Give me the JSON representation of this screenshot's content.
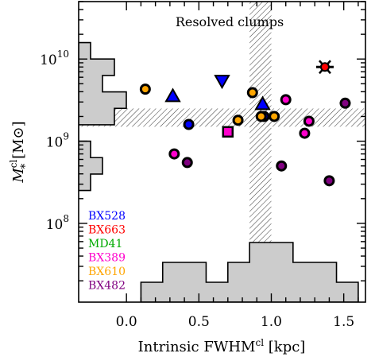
{
  "chart_data": {
    "type": "scatter",
    "title": "Resolved clumps",
    "xlabel": "Intrinsic FWHM",
    "xlabel_sup": "cl",
    "xlabel_unit": "[kpc]",
    "ylabel": "M",
    "ylabel_sup": "cl",
    "ylabel_sub": "*",
    "ylabel_unit": "[M⊙]",
    "xlim": [
      -0.33,
      1.65
    ],
    "ylim": [
      11000000.0,
      50000000000.0
    ],
    "yscale": "log",
    "grid": false,
    "x_ticks": [
      {
        "value": 0.0,
        "label": "0.0"
      },
      {
        "value": 0.5,
        "label": "0.5"
      },
      {
        "value": 1.0,
        "label": "1.0"
      },
      {
        "value": 1.5,
        "label": "1.5"
      }
    ],
    "y_ticks": [
      {
        "value": 100000000.0,
        "mantissa": "10",
        "exp": "8"
      },
      {
        "value": 1000000000.0,
        "mantissa": "10",
        "exp": "9"
      },
      {
        "value": 10000000000.0,
        "mantissa": "10",
        "exp": "10"
      }
    ],
    "legend": {
      "placement": "bottom-left",
      "entries": [
        {
          "name": "BX528",
          "color": "#0000ff"
        },
        {
          "name": "BX663",
          "color": "#ff0000"
        },
        {
          "name": "MD41",
          "color": "#00aa00"
        },
        {
          "name": "BX389",
          "color": "#ff00cc"
        },
        {
          "name": "BX610",
          "color": "#ffa500"
        },
        {
          "name": "BX482",
          "color": "#800080"
        }
      ]
    },
    "reference_bands": {
      "vertical_x": [
        0.85,
        1.0
      ],
      "horizontal_y": [
        1500000000.0,
        2500000000.0
      ]
    },
    "x_histogram": {
      "bin_edges": [
        0.1,
        0.25,
        0.55,
        0.7,
        0.85,
        1.0,
        1.15,
        1.3,
        1.45,
        1.6
      ],
      "counts": [
        1,
        2,
        1,
        2,
        3,
        3,
        2,
        2,
        1
      ]
    },
    "y_histogram": {
      "bin_edges_log": [
        8.4,
        8.6,
        8.8,
        9.0,
        9.2,
        9.4,
        9.6,
        9.8,
        10.0,
        10.2
      ],
      "counts": [
        1,
        2,
        1,
        0,
        3,
        4,
        2,
        3,
        1
      ]
    },
    "series": [
      {
        "name": "BX528",
        "color": "#0000ff",
        "marker": "triangle-up",
        "points": [
          {
            "x": 0.32,
            "y": 3500000000.0
          },
          {
            "x": 0.94,
            "y": 2800000000.0
          }
        ]
      },
      {
        "name": "BX528",
        "color": "#0000ff",
        "marker": "triangle-down",
        "points": [
          {
            "x": 0.66,
            "y": 5500000000.0
          }
        ]
      },
      {
        "name": "BX528",
        "color": "#0000ff",
        "marker": "circle",
        "points": [
          {
            "x": 0.43,
            "y": 1600000000.0
          },
          {
            "x": 0.95,
            "y": 2000000000.0
          }
        ]
      },
      {
        "name": "BX663",
        "color": "#ff0000",
        "marker": "circle-cross",
        "points": [
          {
            "x": 1.37,
            "y": 8000000000.0
          }
        ]
      },
      {
        "name": "BX389",
        "color": "#ff00cc",
        "marker": "square",
        "points": [
          {
            "x": 0.7,
            "y": 1300000000.0
          }
        ]
      },
      {
        "name": "BX389",
        "color": "#ff00cc",
        "marker": "circle",
        "points": [
          {
            "x": 0.33,
            "y": 700000000.0
          },
          {
            "x": 1.1,
            "y": 3200000000.0
          },
          {
            "x": 1.26,
            "y": 1750000000.0
          },
          {
            "x": 1.23,
            "y": 1250000000.0
          }
        ]
      },
      {
        "name": "BX610",
        "color": "#ffa500",
        "marker": "circle",
        "points": [
          {
            "x": 0.13,
            "y": 4300000000.0
          },
          {
            "x": 0.77,
            "y": 1800000000.0
          },
          {
            "x": 0.87,
            "y": 3900000000.0
          },
          {
            "x": 0.93,
            "y": 2000000000.0
          },
          {
            "x": 1.02,
            "y": 2000000000.0
          }
        ]
      },
      {
        "name": "BX482",
        "color": "#800080",
        "marker": "circle",
        "points": [
          {
            "x": 0.42,
            "y": 550000000.0
          },
          {
            "x": 1.07,
            "y": 500000000.0
          },
          {
            "x": 1.4,
            "y": 330000000.0
          },
          {
            "x": 1.51,
            "y": 2900000000.0
          }
        ]
      }
    ]
  }
}
